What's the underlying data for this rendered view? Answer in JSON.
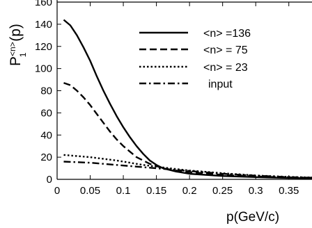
{
  "chart_data": {
    "type": "line",
    "xlabel": "p(GeV/c)",
    "ylabel": {
      "main": "P",
      "sup": "<n>",
      "sub": "1",
      "tail": " (p)"
    },
    "xlim": [
      0,
      0.385
    ],
    "ylim": [
      0,
      160
    ],
    "x_ticks": [
      0,
      0.05,
      0.1,
      0.15,
      0.2,
      0.25,
      0.3,
      0.35
    ],
    "x_tick_labels": [
      "0",
      "0.05",
      "0.1",
      "0.15",
      "0.2",
      "0.25",
      "0.3",
      "0.35"
    ],
    "y_ticks": [
      0,
      20,
      40,
      60,
      80,
      100,
      120,
      140,
      160
    ],
    "y_tick_labels": [
      "0",
      "20",
      "40",
      "60",
      "80",
      "100",
      "120",
      "140",
      "160"
    ],
    "legend_position": "top-right",
    "grid": false,
    "series": [
      {
        "name": "<n> =136",
        "style": "solid",
        "x": [
          0.01,
          0.02,
          0.03,
          0.04,
          0.05,
          0.06,
          0.07,
          0.08,
          0.09,
          0.1,
          0.11,
          0.12,
          0.13,
          0.14,
          0.15,
          0.16,
          0.18,
          0.2,
          0.25,
          0.3,
          0.35,
          0.385
        ],
        "y": [
          144,
          139,
          130,
          119,
          107,
          93,
          80,
          68,
          57,
          47,
          38,
          30,
          23,
          17,
          13,
          10,
          7,
          5,
          3,
          2,
          1.2,
          1
        ]
      },
      {
        "name": "<n> = 75",
        "style": "dashed",
        "x": [
          0.01,
          0.02,
          0.03,
          0.04,
          0.05,
          0.06,
          0.07,
          0.08,
          0.09,
          0.1,
          0.11,
          0.12,
          0.13,
          0.14,
          0.15,
          0.16,
          0.18,
          0.2,
          0.25,
          0.3,
          0.35,
          0.385
        ],
        "y": [
          87,
          85,
          80,
          74,
          67,
          59,
          51,
          43,
          36,
          30,
          25,
          20,
          17,
          14,
          12,
          10,
          8,
          6.5,
          4,
          2.5,
          1.7,
          1.3
        ]
      },
      {
        "name": "<n> = 23",
        "style": "dotted",
        "x": [
          0.01,
          0.03,
          0.05,
          0.07,
          0.09,
          0.11,
          0.13,
          0.15,
          0.17,
          0.2,
          0.25,
          0.3,
          0.35,
          0.385
        ],
        "y": [
          22,
          21,
          20,
          18.5,
          17,
          15,
          13,
          11.5,
          10,
          8,
          5.5,
          3.5,
          2.2,
          1.7
        ]
      },
      {
        "name": "input",
        "style": "dashdot",
        "x": [
          0.01,
          0.03,
          0.05,
          0.07,
          0.09,
          0.11,
          0.13,
          0.15,
          0.17,
          0.2,
          0.25,
          0.3,
          0.35,
          0.385
        ],
        "y": [
          16,
          15.5,
          15,
          14,
          13,
          12,
          11,
          10,
          9,
          7.5,
          5,
          3.3,
          2,
          1.5
        ]
      }
    ]
  }
}
